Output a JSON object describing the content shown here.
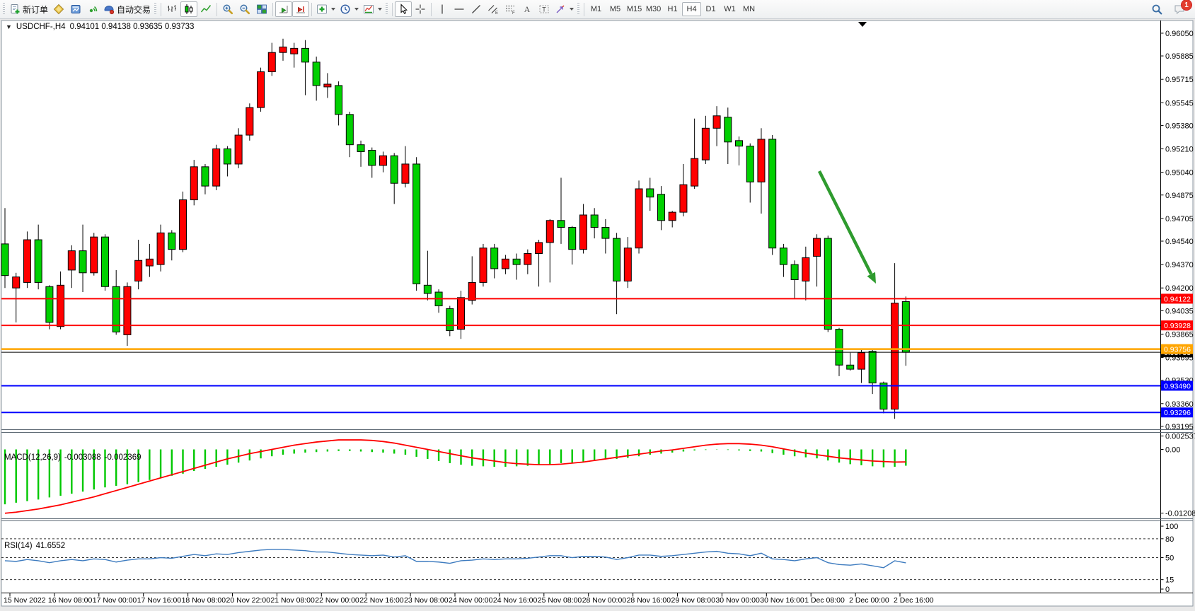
{
  "toolbar": {
    "new_order_label": "新订单",
    "auto_trading_label": "自动交易",
    "timeframe_buttons": [
      "M1",
      "M5",
      "M15",
      "M30",
      "H1",
      "H4",
      "D1",
      "W1",
      "MN"
    ],
    "active_timeframe": "H4",
    "notification_badge": "1"
  },
  "chart_header": {
    "symbol_period": "USDCHF-,H4",
    "ohlc_text": "0.94101 0.94138 0.93635 0.93733"
  },
  "indicators": {
    "macd": {
      "name": "MACD(12,26,9)",
      "value": "-0.003088",
      "signal_value": "-0.002369"
    },
    "rsi": {
      "name": "RSI(14)",
      "value": "41.6552"
    }
  },
  "chart_data": {
    "type": "candlestick",
    "symbol": "USDCHF",
    "timeframe": "H4",
    "last_ohlc": {
      "open": 0.94101,
      "high": 0.94138,
      "low": 0.93635,
      "close": 0.93733
    },
    "up_color": "#FF0000",
    "down_color": "#00D000",
    "price_range": {
      "top": 0.96137,
      "bottom": 0.93174
    },
    "macd_range": {
      "top": 0.00315,
      "bottom": -0.01307
    },
    "rsi_range": {
      "top": 107.9,
      "bottom": -5.6
    },
    "price_axis_ticks": [
      "0.96050",
      "0.95885",
      "0.95715",
      "0.95545",
      "0.95380",
      "0.95210",
      "0.95040",
      "0.94875",
      "0.94705",
      "0.94540",
      "0.94370",
      "0.94200",
      "0.94035",
      "0.93865",
      "0.93695",
      "0.93530",
      "0.93360",
      "0.93195"
    ],
    "time_axis_labels": [
      "15 Nov 2022",
      "16 Nov 08:00",
      "17 Nov 00:00",
      "17 Nov 16:00",
      "18 Nov 08:00",
      "20 Nov 22:00",
      "21 Nov 08:00",
      "22 Nov 00:00",
      "22 Nov 16:00",
      "23 Nov 08:00",
      "24 Nov 00:00",
      "24 Nov 16:00",
      "25 Nov 08:00",
      "28 Nov 00:00",
      "28 Nov 16:00",
      "29 Nov 08:00",
      "30 Nov 00:00",
      "30 Nov 16:00",
      "1 Dec 08:00",
      "2 Dec 00:00",
      "2 Dec 16:00"
    ],
    "hlines": [
      {
        "price": 0.94122,
        "label": "0.94122",
        "color": "#FF0000",
        "width": 2
      },
      {
        "price": 0.93928,
        "label": "0.93928",
        "color": "#FF0000",
        "width": 2
      },
      {
        "price": 0.93756,
        "label": "0.93756",
        "color": "#FFA500",
        "width": 2.5
      },
      {
        "price": 0.93733,
        "label": "0.93733",
        "color": "#000000",
        "width": 1,
        "current": true
      },
      {
        "price": 0.9349,
        "label": "0.93490",
        "color": "#0000FF",
        "width": 2
      },
      {
        "price": 0.93296,
        "label": "0.93296",
        "color": "#0000FF",
        "width": 2
      }
    ],
    "candles": [
      [
        0.9452,
        0.9478,
        0.942,
        0.9429
      ],
      [
        0.942,
        0.9431,
        0.9395,
        0.9428
      ],
      [
        0.9424,
        0.9461,
        0.942,
        0.9455
      ],
      [
        0.9455,
        0.9466,
        0.9419,
        0.9424
      ],
      [
        0.9421,
        0.9422,
        0.939,
        0.9395
      ],
      [
        0.9392,
        0.9432,
        0.939,
        0.9422
      ],
      [
        0.9433,
        0.9451,
        0.942,
        0.9447
      ],
      [
        0.9447,
        0.9466,
        0.9417,
        0.9431
      ],
      [
        0.9431,
        0.946,
        0.9429,
        0.9457
      ],
      [
        0.9457,
        0.9459,
        0.9418,
        0.9421
      ],
      [
        0.9421,
        0.9433,
        0.9386,
        0.9388
      ],
      [
        0.9386,
        0.9424,
        0.9378,
        0.9421
      ],
      [
        0.9425,
        0.9455,
        0.9419,
        0.944
      ],
      [
        0.9436,
        0.9452,
        0.9428,
        0.9441
      ],
      [
        0.9437,
        0.9466,
        0.9432,
        0.946
      ],
      [
        0.946,
        0.9462,
        0.944,
        0.9448
      ],
      [
        0.9448,
        0.949,
        0.9446,
        0.9484
      ],
      [
        0.9484,
        0.9513,
        0.948,
        0.9508
      ],
      [
        0.9508,
        0.951,
        0.9488,
        0.9494
      ],
      [
        0.9494,
        0.9524,
        0.9491,
        0.9521
      ],
      [
        0.9521,
        0.9523,
        0.9501,
        0.951
      ],
      [
        0.951,
        0.9536,
        0.9507,
        0.9531
      ],
      [
        0.9531,
        0.9554,
        0.9527,
        0.9551
      ],
      [
        0.9551,
        0.958,
        0.9548,
        0.9577
      ],
      [
        0.9577,
        0.9598,
        0.9574,
        0.9591
      ],
      [
        0.9591,
        0.9601,
        0.9585,
        0.9595
      ],
      [
        0.959,
        0.9598,
        0.958,
        0.9594
      ],
      [
        0.9594,
        0.96,
        0.956,
        0.9584
      ],
      [
        0.9584,
        0.9588,
        0.9556,
        0.9567
      ],
      [
        0.9566,
        0.9576,
        0.9558,
        0.9568
      ],
      [
        0.9567,
        0.957,
        0.9538,
        0.9546
      ],
      [
        0.9546,
        0.9548,
        0.9515,
        0.9524
      ],
      [
        0.9524,
        0.9527,
        0.9508,
        0.9519
      ],
      [
        0.952,
        0.9522,
        0.95,
        0.9509
      ],
      [
        0.9509,
        0.9519,
        0.9504,
        0.9516
      ],
      [
        0.9516,
        0.9518,
        0.9481,
        0.9496
      ],
      [
        0.9496,
        0.9523,
        0.9493,
        0.951
      ],
      [
        0.951,
        0.9515,
        0.9418,
        0.9423
      ],
      [
        0.9422,
        0.9447,
        0.9411,
        0.9416
      ],
      [
        0.9417,
        0.9419,
        0.9402,
        0.9407
      ],
      [
        0.9405,
        0.9407,
        0.9385,
        0.9389
      ],
      [
        0.939,
        0.9418,
        0.9383,
        0.9413
      ],
      [
        0.9411,
        0.9443,
        0.9408,
        0.9424
      ],
      [
        0.9424,
        0.9452,
        0.9421,
        0.9449
      ],
      [
        0.9449,
        0.9452,
        0.9427,
        0.9434
      ],
      [
        0.9434,
        0.9444,
        0.943,
        0.9441
      ],
      [
        0.9441,
        0.9445,
        0.9426,
        0.9437
      ],
      [
        0.9437,
        0.9448,
        0.943,
        0.9445
      ],
      [
        0.9445,
        0.9455,
        0.9421,
        0.9453
      ],
      [
        0.9453,
        0.947,
        0.9424,
        0.9469
      ],
      [
        0.9469,
        0.95,
        0.9452,
        0.9464
      ],
      [
        0.9464,
        0.9465,
        0.9437,
        0.9448
      ],
      [
        0.9448,
        0.9481,
        0.9445,
        0.9473
      ],
      [
        0.9473,
        0.9478,
        0.9456,
        0.9464
      ],
      [
        0.9464,
        0.947,
        0.9445,
        0.9456
      ],
      [
        0.9456,
        0.946,
        0.9401,
        0.9425
      ],
      [
        0.9425,
        0.9457,
        0.942,
        0.9449
      ],
      [
        0.9449,
        0.9498,
        0.9445,
        0.9492
      ],
      [
        0.9492,
        0.95,
        0.9476,
        0.9486
      ],
      [
        0.9488,
        0.9494,
        0.9462,
        0.9469
      ],
      [
        0.9469,
        0.9476,
        0.9464,
        0.9475
      ],
      [
        0.9475,
        0.951,
        0.9472,
        0.9495
      ],
      [
        0.9494,
        0.9543,
        0.9492,
        0.9514
      ],
      [
        0.9513,
        0.9545,
        0.951,
        0.9536
      ],
      [
        0.9536,
        0.9552,
        0.9523,
        0.9545
      ],
      [
        0.9544,
        0.9551,
        0.951,
        0.9526
      ],
      [
        0.9527,
        0.953,
        0.9509,
        0.9523
      ],
      [
        0.9523,
        0.9525,
        0.9482,
        0.9497
      ],
      [
        0.9497,
        0.9536,
        0.9474,
        0.9528
      ],
      [
        0.9528,
        0.9531,
        0.9444,
        0.9449
      ],
      [
        0.9449,
        0.9452,
        0.9428,
        0.9437
      ],
      [
        0.9437,
        0.944,
        0.9412,
        0.9426
      ],
      [
        0.9425,
        0.945,
        0.9411,
        0.9442
      ],
      [
        0.9443,
        0.9459,
        0.9421,
        0.9456
      ],
      [
        0.9456,
        0.9458,
        0.9388,
        0.939
      ],
      [
        0.939,
        0.9391,
        0.9356,
        0.9364
      ],
      [
        0.9364,
        0.9373,
        0.936,
        0.9361
      ],
      [
        0.9361,
        0.9375,
        0.9351,
        0.9373
      ],
      [
        0.9374,
        0.9375,
        0.9343,
        0.9351
      ],
      [
        0.9351,
        0.9352,
        0.9329,
        0.9332
      ],
      [
        0.9332,
        0.9438,
        0.9325,
        0.9409
      ],
      [
        0.94101,
        0.94138,
        0.93635,
        0.93733
      ]
    ],
    "macd": {
      "params": "12,26,9",
      "hist_color": "#00C800",
      "signal_color": "#FF0000",
      "axis_labels": [
        "0.002537",
        "0.00",
        "-0.01208"
      ],
      "histogram": [
        -0.0104,
        -0.0101,
        -0.0098,
        -0.0095,
        -0.0091,
        -0.0088,
        -0.0084,
        -0.008,
        -0.0076,
        -0.0072,
        -0.0069,
        -0.0066,
        -0.0062,
        -0.0058,
        -0.0054,
        -0.005,
        -0.0046,
        -0.0041,
        -0.0037,
        -0.0033,
        -0.0029,
        -0.0025,
        -0.0021,
        -0.0017,
        -0.0013,
        -0.001,
        -0.0008,
        -0.0006,
        -0.0005,
        -0.0004,
        -0.0003,
        -0.0003,
        -0.0004,
        -0.0005,
        -0.0006,
        -0.0008,
        -0.001,
        -0.0014,
        -0.0018,
        -0.0022,
        -0.0026,
        -0.0029,
        -0.0031,
        -0.0032,
        -0.0033,
        -0.0033,
        -0.0032,
        -0.0031,
        -0.003,
        -0.0028,
        -0.0026,
        -0.0025,
        -0.0023,
        -0.0021,
        -0.0019,
        -0.0018,
        -0.0016,
        -0.0013,
        -0.001,
        -0.0008,
        -0.0006,
        -0.0004,
        -0.0002,
        -0.0001,
        -5e-05,
        -0.0001,
        -0.0002,
        -0.0003,
        -0.0004,
        -0.0007,
        -0.001,
        -0.0013,
        -0.0015,
        -0.0017,
        -0.0021,
        -0.0025,
        -0.0028,
        -0.003,
        -0.0032,
        -0.0034,
        -0.0033,
        -0.003088
      ],
      "signal": [
        -0.0121,
        -0.0119,
        -0.0116,
        -0.0113,
        -0.0109,
        -0.0105,
        -0.01,
        -0.0095,
        -0.009,
        -0.0084,
        -0.0078,
        -0.0072,
        -0.0066,
        -0.006,
        -0.0054,
        -0.0048,
        -0.0042,
        -0.0036,
        -0.003,
        -0.0024,
        -0.0018,
        -0.0013,
        -0.0008,
        -0.0004,
        0.0,
        0.0004,
        0.0008,
        0.0011,
        0.0014,
        0.0016,
        0.0018,
        0.0018,
        0.0018,
        0.0017,
        0.0015,
        0.0012,
        0.0008,
        0.0004,
        0.0,
        -0.0004,
        -0.0008,
        -0.0012,
        -0.0016,
        -0.0019,
        -0.0022,
        -0.0025,
        -0.0027,
        -0.0028,
        -0.0029,
        -0.0029,
        -0.0028,
        -0.0026,
        -0.0024,
        -0.0021,
        -0.0018,
        -0.0015,
        -0.0012,
        -0.0009,
        -0.0006,
        -0.0003,
        -0.0001,
        0.0002,
        0.0005,
        0.0008,
        0.001,
        0.0011,
        0.0011,
        0.001,
        0.0008,
        0.0005,
        0.0001,
        -0.0003,
        -0.0007,
        -0.001,
        -0.0013,
        -0.0016,
        -0.0018,
        -0.002,
        -0.0022,
        -0.0023,
        -0.0024,
        -0.002369
      ]
    },
    "rsi": {
      "period": 14,
      "color": "#3D7BBF",
      "levels": [
        100,
        80,
        50,
        15,
        0
      ],
      "dashed_levels": [
        80,
        50,
        15
      ],
      "values": [
        45,
        44,
        47,
        45,
        42,
        45,
        47,
        45,
        48,
        47,
        43,
        46,
        48,
        48,
        50,
        49,
        52,
        55,
        53,
        56,
        55,
        58,
        60,
        62,
        63,
        63,
        62,
        61,
        59,
        59,
        57,
        55,
        54,
        53,
        54,
        51,
        53,
        44,
        44,
        43,
        41,
        45,
        46,
        48,
        47,
        48,
        48,
        49,
        51,
        53,
        53,
        50,
        52,
        52,
        51,
        47,
        50,
        54,
        54,
        52,
        53,
        55,
        57,
        59,
        60,
        57,
        56,
        53,
        57,
        48,
        47,
        45,
        48,
        50,
        42,
        39,
        38,
        40,
        37,
        34,
        45,
        41.6552
      ]
    },
    "annotations": [
      {
        "type": "arrow",
        "from": [
          1158,
          242
        ],
        "to": [
          1238,
          401
        ],
        "color": "#2E9B2E"
      }
    ]
  }
}
